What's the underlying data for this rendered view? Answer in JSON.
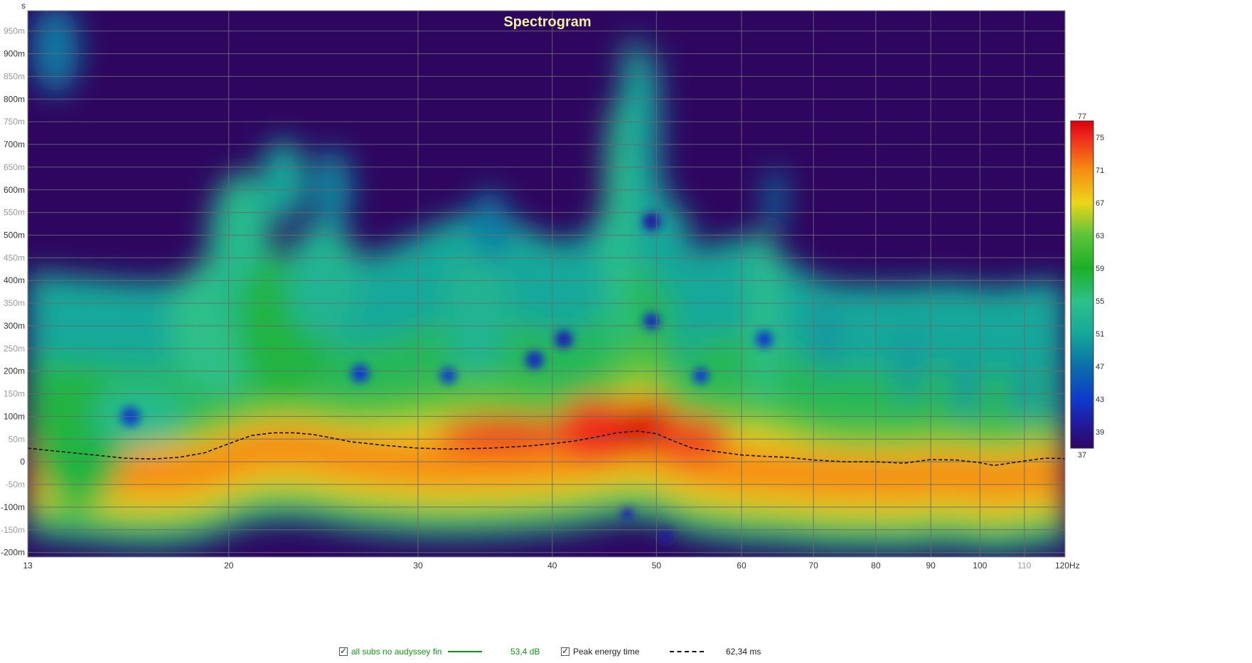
{
  "chart_data": {
    "type": "heatmap",
    "title": "Spectrogram",
    "ylabel": "s",
    "xlabel": "",
    "x_scale": "log",
    "xlim": [
      13,
      120
    ],
    "ylim": [
      -0.21,
      0.995
    ],
    "x_ticks": [
      {
        "value": 13,
        "label": "13"
      },
      {
        "value": 20,
        "label": "20"
      },
      {
        "value": 30,
        "label": "30"
      },
      {
        "value": 40,
        "label": "40"
      },
      {
        "value": 50,
        "label": "50"
      },
      {
        "value": 60,
        "label": "60"
      },
      {
        "value": 70,
        "label": "70"
      },
      {
        "value": 80,
        "label": "80"
      },
      {
        "value": 90,
        "label": "90"
      },
      {
        "value": 100,
        "label": "100"
      },
      {
        "value": 110,
        "label": "110",
        "dim": true
      },
      {
        "value": 120,
        "label": "120Hz"
      }
    ],
    "y_ticks": [
      {
        "value": 0.95,
        "label": "950m"
      },
      {
        "value": 0.9,
        "label": "900m"
      },
      {
        "value": 0.85,
        "label": "850m"
      },
      {
        "value": 0.8,
        "label": "800m"
      },
      {
        "value": 0.75,
        "label": "750m"
      },
      {
        "value": 0.7,
        "label": "700m"
      },
      {
        "value": 0.65,
        "label": "650m"
      },
      {
        "value": 0.6,
        "label": "600m"
      },
      {
        "value": 0.55,
        "label": "550m"
      },
      {
        "value": 0.5,
        "label": "500m"
      },
      {
        "value": 0.45,
        "label": "450m"
      },
      {
        "value": 0.4,
        "label": "400m"
      },
      {
        "value": 0.35,
        "label": "350m"
      },
      {
        "value": 0.3,
        "label": "300m"
      },
      {
        "value": 0.25,
        "label": "250m"
      },
      {
        "value": 0.2,
        "label": "200m"
      },
      {
        "value": 0.15,
        "label": "150m"
      },
      {
        "value": 0.1,
        "label": "100m"
      },
      {
        "value": 0.05,
        "label": "50m"
      },
      {
        "value": 0.0,
        "label": "0"
      },
      {
        "value": -0.05,
        "label": "-50m"
      },
      {
        "value": -0.1,
        "label": "-100m"
      },
      {
        "value": -0.15,
        "label": "-150m"
      },
      {
        "value": -0.2,
        "label": "-200m"
      }
    ],
    "dim_y_labels": [
      "950m",
      "850m",
      "750m",
      "650m",
      "550m",
      "450m",
      "350m",
      "250m",
      "150m",
      "50m",
      "-50m",
      "-150m"
    ],
    "colorbar": {
      "min": 37,
      "max": 77,
      "unit": "dB",
      "ticks": [
        {
          "value": 77,
          "label": "77"
        },
        {
          "value": 75,
          "label": "75"
        },
        {
          "value": 71,
          "label": "71"
        },
        {
          "value": 67,
          "label": "67"
        },
        {
          "value": 63,
          "label": "63"
        },
        {
          "value": 59,
          "label": "59"
        },
        {
          "value": 55,
          "label": "55"
        },
        {
          "value": 51,
          "label": "51"
        },
        {
          "value": 47,
          "label": "47"
        },
        {
          "value": 43,
          "label": "43"
        },
        {
          "value": 39,
          "label": "39"
        },
        {
          "value": 37,
          "label": "37"
        }
      ],
      "stops": [
        {
          "value": 37,
          "color": "#2e0660"
        },
        {
          "value": 40,
          "color": "#221a9c"
        },
        {
          "value": 43,
          "color": "#0f3acb"
        },
        {
          "value": 47,
          "color": "#0a6fa8"
        },
        {
          "value": 51,
          "color": "#16a89a"
        },
        {
          "value": 55,
          "color": "#2ec089"
        },
        {
          "value": 59,
          "color": "#1dae28"
        },
        {
          "value": 63,
          "color": "#5cc33b"
        },
        {
          "value": 67,
          "color": "#ecd51a"
        },
        {
          "value": 71,
          "color": "#f58d12"
        },
        {
          "value": 75,
          "color": "#ee2a1c"
        },
        {
          "value": 77,
          "color": "#d8000c"
        }
      ]
    },
    "background_color": "#2e0660",
    "grid": true,
    "grid_color": "#6a6a6a",
    "peak_energy_time": {
      "name": "Peak energy time",
      "style": "dashed",
      "color": "#111111",
      "x": [
        13,
        14,
        15,
        16,
        17,
        18,
        19,
        20,
        21,
        22,
        23,
        24,
        25,
        26,
        28,
        30,
        32,
        35,
        38,
        40,
        42,
        44,
        46,
        48,
        50,
        52,
        54,
        57,
        60,
        63,
        66,
        70,
        75,
        80,
        85,
        90,
        95,
        100,
        103,
        106,
        110,
        115,
        120
      ],
      "y": [
        0.03,
        0.022,
        0.015,
        0.008,
        0.006,
        0.01,
        0.02,
        0.04,
        0.058,
        0.064,
        0.064,
        0.06,
        0.052,
        0.044,
        0.036,
        0.03,
        0.028,
        0.03,
        0.035,
        0.04,
        0.046,
        0.055,
        0.064,
        0.068,
        0.062,
        0.045,
        0.03,
        0.022,
        0.015,
        0.012,
        0.01,
        0.004,
        0.0,
        0.0,
        -0.003,
        0.005,
        0.004,
        -0.002,
        -0.008,
        -0.004,
        0.002,
        0.008,
        0.007
      ]
    },
    "blobs": [
      {
        "x": 13.8,
        "y": 0.91,
        "sx": 0.05,
        "sy": 0.1,
        "db": 48
      },
      {
        "x": 14.5,
        "y": 0.05,
        "sx": 0.1,
        "sy": 0.15,
        "db": 58
      },
      {
        "x": 16.5,
        "y": 0.1,
        "sx": 0.1,
        "sy": 0.07,
        "db": 54
      },
      {
        "x": 19.5,
        "y": 0.3,
        "sx": 0.1,
        "sy": 0.15,
        "db": 55
      },
      {
        "x": 20.5,
        "y": 0.46,
        "sx": 0.07,
        "sy": 0.18,
        "db": 54
      },
      {
        "x": 22.5,
        "y": 0.3,
        "sx": 0.1,
        "sy": 0.16,
        "db": 58
      },
      {
        "x": 22.5,
        "y": 0.62,
        "sx": 0.05,
        "sy": 0.09,
        "db": 51
      },
      {
        "x": 24.5,
        "y": 0.4,
        "sx": 0.08,
        "sy": 0.13,
        "db": 53
      },
      {
        "x": 25.0,
        "y": 0.6,
        "sx": 0.04,
        "sy": 0.09,
        "db": 49
      },
      {
        "x": 34.0,
        "y": 0.33,
        "sx": 0.07,
        "sy": 0.14,
        "db": 53
      },
      {
        "x": 35.0,
        "y": 0.52,
        "sx": 0.04,
        "sy": 0.08,
        "db": 48
      },
      {
        "x": 46.0,
        "y": 0.52,
        "sx": 0.03,
        "sy": 0.28,
        "db": 55
      },
      {
        "x": 47.5,
        "y": 0.8,
        "sx": 0.025,
        "sy": 0.14,
        "db": 52
      },
      {
        "x": 49.5,
        "y": 0.7,
        "sx": 0.02,
        "sy": 0.22,
        "db": 50
      },
      {
        "x": 53.0,
        "y": 0.38,
        "sx": 0.02,
        "sy": 0.18,
        "db": 51
      },
      {
        "x": 63.0,
        "y": 0.32,
        "sx": 0.03,
        "sy": 0.2,
        "db": 55
      },
      {
        "x": 64.5,
        "y": 0.58,
        "sx": 0.02,
        "sy": 0.07,
        "db": 48
      },
      {
        "x": 72.0,
        "y": 0.28,
        "sx": 0.02,
        "sy": 0.09,
        "db": 49
      },
      {
        "x": 86.0,
        "y": 0.22,
        "sx": 0.03,
        "sy": 0.09,
        "db": 50
      },
      {
        "x": 97.0,
        "y": 0.17,
        "sx": 0.03,
        "sy": 0.08,
        "db": 50
      },
      {
        "x": 110.0,
        "y": 0.16,
        "sx": 0.03,
        "sy": 0.08,
        "db": 50
      },
      {
        "x": 118.0,
        "y": 0.15,
        "sx": 0.02,
        "sy": 0.07,
        "db": 50
      }
    ],
    "holes": [
      {
        "x": 16.2,
        "y": 0.1,
        "r": 14,
        "db": 44
      },
      {
        "x": 26.5,
        "y": 0.195,
        "r": 13,
        "db": 43
      },
      {
        "x": 32.0,
        "y": 0.19,
        "r": 12,
        "db": 44
      },
      {
        "x": 38.5,
        "y": 0.225,
        "r": 13,
        "db": 42
      },
      {
        "x": 41.0,
        "y": 0.27,
        "r": 13,
        "db": 41
      },
      {
        "x": 49.5,
        "y": 0.53,
        "r": 13,
        "db": 40
      },
      {
        "x": 49.5,
        "y": 0.31,
        "r": 12,
        "db": 42
      },
      {
        "x": 55.0,
        "y": 0.19,
        "r": 11,
        "db": 43
      },
      {
        "x": 63.0,
        "y": 0.27,
        "r": 12,
        "db": 43
      },
      {
        "x": 47.0,
        "y": -0.115,
        "r": 9,
        "db": 41
      },
      {
        "x": 51.0,
        "y": -0.165,
        "r": 10,
        "db": 40
      }
    ]
  },
  "legend": {
    "series_name": "all subs no audyssey fin",
    "series_color": "#119911",
    "series_value": "53,4 dB",
    "peak_label": "Peak energy time",
    "peak_value": "62,34 ms"
  }
}
